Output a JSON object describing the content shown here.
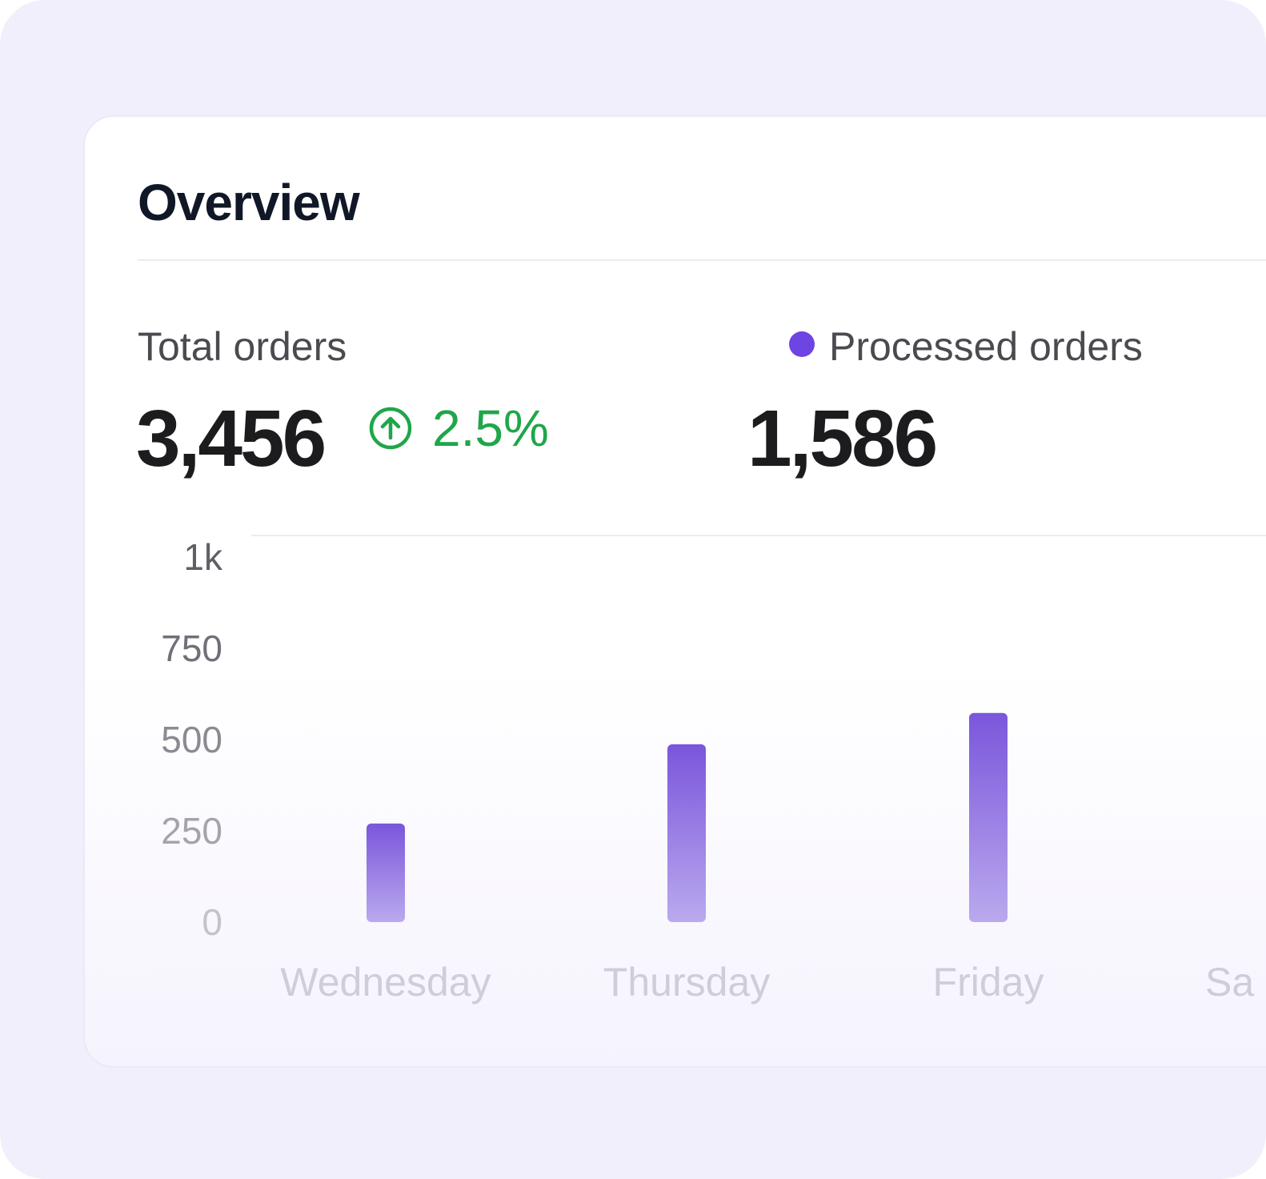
{
  "overview": {
    "title": "Overview"
  },
  "stats": {
    "total_orders": {
      "label": "Total orders",
      "value": "3,456",
      "trend": "2.5%",
      "trend_icon": "arrow-up-circle-icon",
      "trend_color": "#1fa64a"
    },
    "processed_orders": {
      "label": "Processed orders",
      "value": "1,586",
      "legend_color": "#6e44e2"
    }
  },
  "chart_data": {
    "type": "bar",
    "title": "",
    "xlabel": "",
    "ylabel": "",
    "ylim": [
      0,
      1000
    ],
    "y_ticks": [
      {
        "value": 1000,
        "label": "1k",
        "color": "#5f5f66"
      },
      {
        "value": 750,
        "label": "750",
        "color": "#707078"
      },
      {
        "value": 500,
        "label": "500",
        "color": "#8a8a92"
      },
      {
        "value": 250,
        "label": "250",
        "color": "#a5a4ac"
      },
      {
        "value": 0,
        "label": "0",
        "color": "#c4c3cb"
      }
    ],
    "categories": [
      "Wednesday",
      "Thursday",
      "Friday",
      "Sa"
    ],
    "series": [
      {
        "name": "Processed orders",
        "color": "#6e44e2",
        "values": [
          270,
          487,
          573,
          null
        ]
      }
    ]
  }
}
